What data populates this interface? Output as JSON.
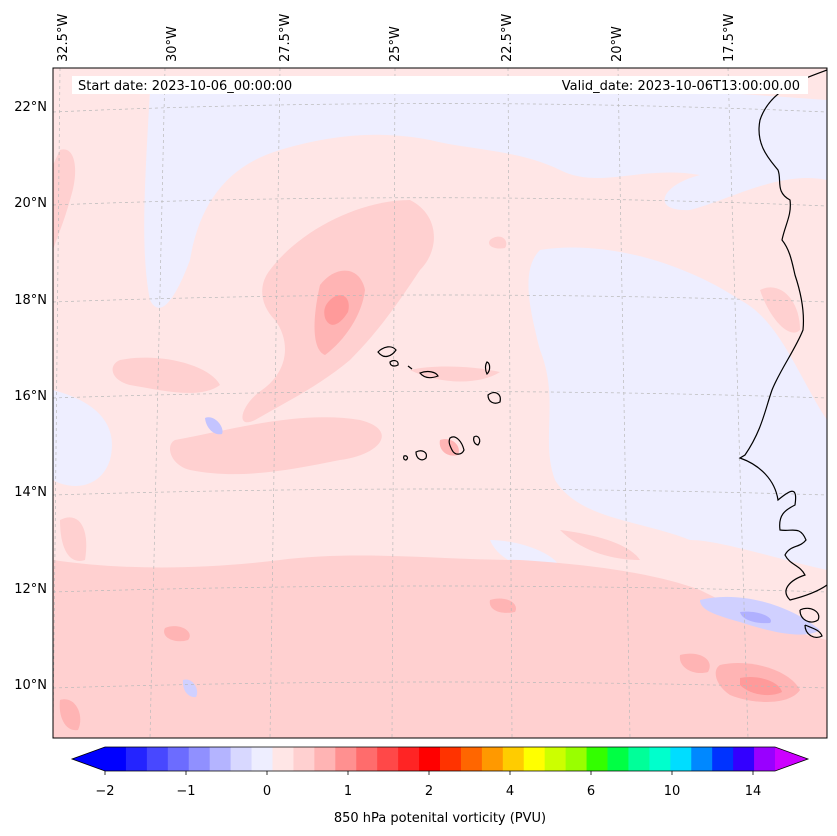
{
  "header": {
    "start_date": "Start date: 2023-10-06_00:00:00",
    "valid_date": "Valid_date: 2023-10-06T13:00:00.00"
  },
  "lon_labels": [
    "32.5°W",
    "30°W",
    "27.5°W",
    "25°W",
    "22.5°W",
    "20°W",
    "17.5°W"
  ],
  "lat_labels": [
    "22°N",
    "20°N",
    "18°N",
    "16°N",
    "14°N",
    "12°N",
    "10°N"
  ],
  "colorbar": {
    "label": "850 hPa potenital vorticity (PVU)",
    "tick_labels": [
      "−2",
      "−1",
      "0",
      "1",
      "2",
      "4",
      "6",
      "10",
      "14"
    ],
    "colors": [
      "#0000ff",
      "#2424ff",
      "#4848ff",
      "#6c6cff",
      "#9090ff",
      "#b4b4ff",
      "#d8d8ff",
      "#eeeeff",
      "#ffe6e6",
      "#ffd0d0",
      "#ffb4b4",
      "#ff9090",
      "#ff6c6c",
      "#ff4848",
      "#ff2424",
      "#ff0000",
      "#ff3300",
      "#ff6600",
      "#ff9900",
      "#ffcc00",
      "#ffff00",
      "#ccff00",
      "#99ff00",
      "#33ff00",
      "#00ff44",
      "#00ff99",
      "#00ffcc",
      "#00ddff",
      "#0088ff",
      "#0033ff",
      "#3300ff",
      "#9900ff"
    ],
    "extend_low_color": "#0000ff",
    "extend_high_color": "#cc00ff"
  },
  "colors": {
    "background": "#ffe6e6",
    "light_pos": "#ffd0d0",
    "mid_pos": "#ffb4b4",
    "strong_pos": "#ff9a9a",
    "light_neg": "#eeeeff",
    "mid_neg": "#d0d0ff",
    "strong_neg": "#b0b0ff",
    "coast": "#000000",
    "grid": "#b0b0b0"
  }
}
